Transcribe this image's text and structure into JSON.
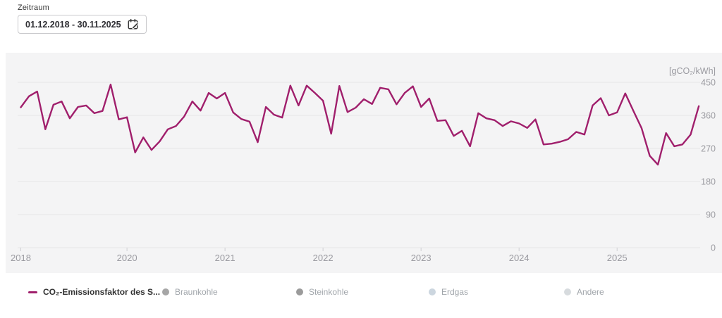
{
  "controls": {
    "zeitraum_label": "Zeitraum",
    "date_range_value": "01.12.2018 - 30.11.2025"
  },
  "colors": {
    "line": "#a01f6c",
    "grid": "#e6e6e8",
    "axis_text": "#9b9ba1",
    "tick": "#cfcfd3",
    "card_bg": "#f4f4f5",
    "legend_active_text": "#333333",
    "legend_inactive_text": "#a1a6ab"
  },
  "legend": {
    "items": [
      {
        "label": "CO₂-Emissionsfaktor des S...",
        "marker": "line",
        "marker_color": "#a01f6c",
        "active": true
      },
      {
        "label": "Braunkohle",
        "marker": "circle",
        "marker_color": "#a6a6a6",
        "active": false
      },
      {
        "label": "Steinkohle",
        "marker": "circle",
        "marker_color": "#9b9b9b",
        "active": false
      },
      {
        "label": "Erdgas",
        "marker": "circle",
        "marker_color": "#ccd6df",
        "active": false
      },
      {
        "label": "Andere",
        "marker": "circle",
        "marker_color": "#d7dbde",
        "active": false
      }
    ]
  },
  "chart_data": {
    "type": "line",
    "unit": "[gCO₂/kWh]",
    "ylim": [
      0,
      450
    ],
    "y_ticks": [
      450,
      360,
      270,
      180,
      90,
      0
    ],
    "x_ticks": [
      {
        "label": "2018",
        "month_index": 0
      },
      {
        "label": "2020",
        "month_index": 13
      },
      {
        "label": "2021",
        "month_index": 25
      },
      {
        "label": "2022",
        "month_index": 37
      },
      {
        "label": "2023",
        "month_index": 49
      },
      {
        "label": "2024",
        "month_index": 61
      },
      {
        "label": "2025",
        "month_index": 73
      }
    ],
    "x_start": "Dez 2018",
    "x_end": "Nov 2025",
    "interval": "monthly",
    "grid": true,
    "legend_position": "bottom",
    "series": [
      {
        "name": "CO₂-Emissionsfaktor des S...",
        "color": "#a01f6c",
        "values": [
          382,
          412,
          425,
          322,
          389,
          398,
          352,
          383,
          387,
          366,
          372,
          444,
          349,
          355,
          259,
          300,
          266,
          289,
          322,
          331,
          357,
          398,
          373,
          421,
          406,
          421,
          368,
          350,
          343,
          287,
          383,
          362,
          354,
          441,
          387,
          441,
          421,
          400,
          310,
          440,
          369,
          381,
          404,
          391,
          435,
          431,
          390,
          421,
          439,
          383,
          406,
          345,
          347,
          304,
          318,
          276,
          366,
          352,
          347,
          331,
          344,
          338,
          326,
          349,
          281,
          283,
          288,
          295,
          315,
          308,
          387,
          407,
          360,
          368,
          420,
          372,
          325,
          250,
          226,
          312,
          276,
          281,
          308,
          385
        ]
      }
    ]
  }
}
